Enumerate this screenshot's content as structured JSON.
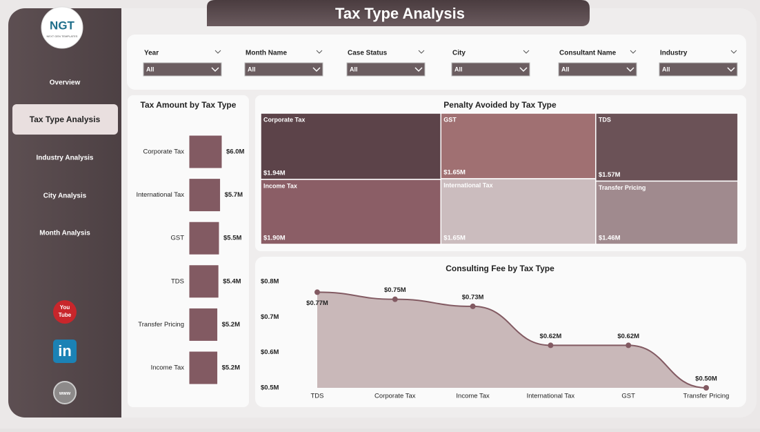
{
  "header": {
    "title": "Tax Type Analysis",
    "logo": "NGT",
    "logo_sub": "NEXT GEN TEMPLATES"
  },
  "nav": [
    "Overview",
    "Tax Type Analysis",
    "Industry Analysis",
    "City Analysis",
    "Month Analysis"
  ],
  "social": {
    "youtube": [
      "You",
      "Tube"
    ],
    "linkedin": "in",
    "web": "www"
  },
  "filters": [
    {
      "label": "Year",
      "value": "All"
    },
    {
      "label": "Month Name",
      "value": "All"
    },
    {
      "label": "Case Status",
      "value": "All"
    },
    {
      "label": "City",
      "value": "All"
    },
    {
      "label": "Consultant Name",
      "value": "All"
    },
    {
      "label": "Industry",
      "value": "All"
    }
  ],
  "chart_data": [
    {
      "type": "bar",
      "horizontal": true,
      "title": "Tax Amount by Tax Type",
      "color": "#825a62",
      "categories": [
        "Corporate Tax",
        "International Tax",
        "GST",
        "TDS",
        "Transfer Pricing",
        "Income Tax"
      ],
      "values": [
        6.0,
        5.7,
        5.5,
        5.4,
        5.2,
        5.2
      ],
      "value_labels": [
        "$6.0M",
        "$5.7M",
        "$5.5M",
        "$5.4M",
        "$5.2M",
        "$5.2M"
      ]
    },
    {
      "type": "treemap",
      "title": "Penalty Avoided by Tax Type",
      "categories": [
        "Corporate Tax",
        "Income Tax",
        "GST",
        "International Tax",
        "TDS",
        "Transfer Pricing"
      ],
      "values": [
        1.94,
        1.9,
        1.65,
        1.65,
        1.57,
        1.46
      ],
      "value_labels": [
        "$1.94M",
        "$1.90M",
        "$1.65M",
        "$1.65M",
        "$1.57M",
        "$1.46M"
      ],
      "colors": [
        "#5c4349",
        "#8b5e66",
        "#a07072",
        "#cbbcbe",
        "#6b5257",
        "#a08a8e"
      ]
    },
    {
      "type": "line",
      "title": "Consulting Fee by Tax Type",
      "color": "#825a62",
      "area_color": "#c9b8b9",
      "categories": [
        "TDS",
        "Corporate Tax",
        "Income Tax",
        "International Tax",
        "GST",
        "Transfer Pricing"
      ],
      "values": [
        0.77,
        0.75,
        0.73,
        0.62,
        0.62,
        0.5
      ],
      "value_labels": [
        "$0.77M",
        "$0.75M",
        "$0.73M",
        "$0.62M",
        "$0.62M",
        "$0.50M"
      ],
      "ylim": [
        0.5,
        0.8
      ],
      "yticks": [
        {
          "value": 0.5,
          "label": "$0.5M"
        },
        {
          "value": 0.6,
          "label": "$0.6M"
        },
        {
          "value": 0.7,
          "label": "$0.7M"
        },
        {
          "value": 0.8,
          "label": "$0.8M"
        }
      ]
    }
  ]
}
